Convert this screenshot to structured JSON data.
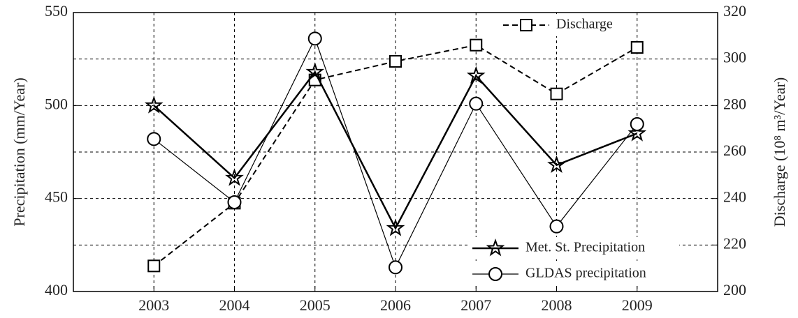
{
  "chart_data": {
    "type": "line",
    "ylabel": "Precipitation (mm/Year)",
    "y2label": "Discharge (10⁸ m³/Year)",
    "x": [
      2003,
      2004,
      2005,
      2006,
      2007,
      2008,
      2009
    ],
    "xlim": [
      2002,
      2010
    ],
    "xticks": [
      2003,
      2004,
      2005,
      2006,
      2007,
      2008,
      2009
    ],
    "ylim": [
      400,
      550
    ],
    "yticks": [
      400,
      450,
      500,
      550
    ],
    "y2lim": [
      200,
      320
    ],
    "y2ticks": [
      200,
      220,
      240,
      260,
      280,
      300,
      320
    ],
    "grid": true,
    "series": [
      {
        "name": "Discharge",
        "color": "#000000",
        "axis": "y2",
        "marker": "square",
        "dashed": true,
        "linewidth": 2,
        "values": [
          211,
          238,
          291,
          299,
          306,
          285,
          305
        ]
      },
      {
        "name": "Met. St. Precipitation",
        "color": "#000000",
        "marker": "star",
        "dashed": false,
        "linewidth": 2.5,
        "values": [
          500,
          461,
          518,
          434,
          516,
          468,
          485
        ]
      },
      {
        "name": "GLDAS precipitation",
        "color": "#000000",
        "marker": "circle",
        "dashed": false,
        "linewidth": 1.2,
        "values": [
          482,
          448,
          536,
          413,
          501,
          435,
          490
        ]
      }
    ]
  }
}
